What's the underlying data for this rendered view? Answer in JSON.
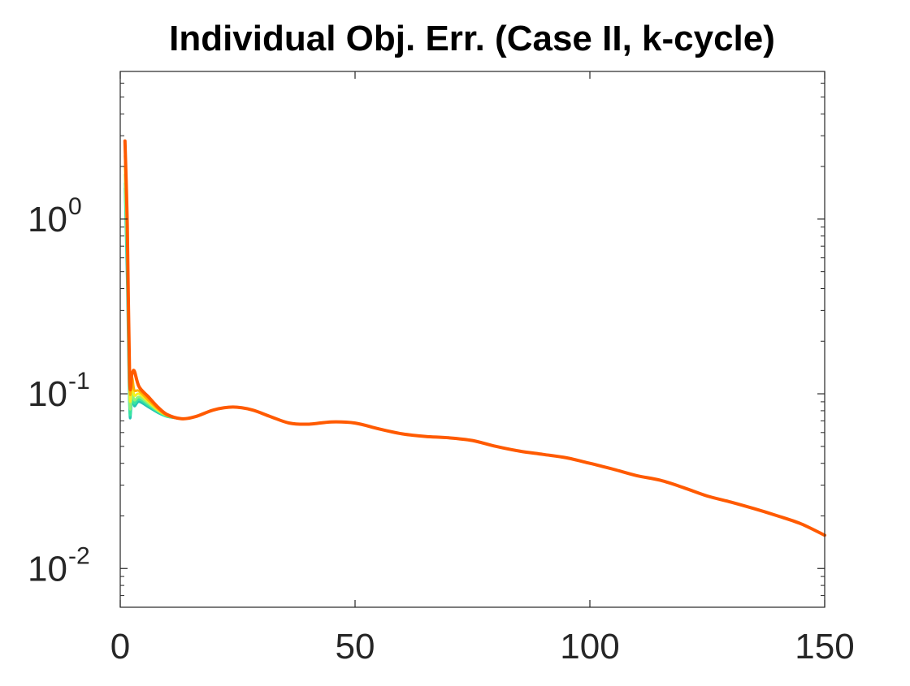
{
  "chart_data": {
    "type": "line",
    "title": "Individual Obj. Err. (Case II, k-cycle)",
    "xlabel": "",
    "ylabel": "",
    "xlim": [
      0,
      150
    ],
    "ylim": [
      0.006,
      7
    ],
    "yscale": "log",
    "grid": false,
    "x_ticks": [
      {
        "value": 0,
        "label": "0"
      },
      {
        "value": 50,
        "label": "50"
      },
      {
        "value": 100,
        "label": "100"
      },
      {
        "value": 150,
        "label": "150"
      }
    ],
    "y_ticks": [
      {
        "value": 0.01,
        "base": "10",
        "exp": "-2"
      },
      {
        "value": 0.1,
        "base": "10",
        "exp": "-1"
      },
      {
        "value": 1,
        "base": "10",
        "exp": "0"
      }
    ],
    "series": [
      {
        "color": "#22c4b4",
        "x": [
          1,
          1.5,
          2,
          2.5,
          3,
          4,
          6,
          8,
          10,
          13
        ],
        "y": [
          1.5,
          0.4,
          0.078,
          0.095,
          0.085,
          0.09,
          0.084,
          0.078,
          0.074,
          0.072
        ]
      },
      {
        "color": "#39e6a0",
        "x": [
          1,
          1.5,
          2,
          2.5,
          3,
          4,
          6,
          8,
          10,
          13
        ],
        "y": [
          1.6,
          0.5,
          0.082,
          0.1,
          0.088,
          0.093,
          0.086,
          0.079,
          0.074,
          0.072
        ]
      },
      {
        "color": "#8ef27a",
        "x": [
          1,
          1.5,
          2,
          2.5,
          3,
          4,
          6,
          8,
          10,
          13
        ],
        "y": [
          1.8,
          0.6,
          0.09,
          0.105,
          0.092,
          0.096,
          0.088,
          0.08,
          0.075,
          0.072
        ]
      },
      {
        "color": "#f4f020",
        "x": [
          1,
          1.5,
          2,
          2.5,
          3,
          4,
          6,
          8,
          10,
          13
        ],
        "y": [
          2.0,
          0.7,
          0.1,
          0.115,
          0.098,
          0.1,
          0.09,
          0.081,
          0.075,
          0.072
        ]
      },
      {
        "color": "#ffb000",
        "x": [
          1,
          1.5,
          2,
          2.5,
          3,
          4,
          6,
          8,
          10,
          13
        ],
        "y": [
          2.3,
          0.8,
          0.11,
          0.125,
          0.105,
          0.104,
          0.092,
          0.082,
          0.075,
          0.072
        ]
      },
      {
        "color": "#ff5a00",
        "x": [
          1,
          1.5,
          2,
          2.5,
          3,
          4,
          6,
          8,
          10,
          13,
          16,
          20,
          24,
          28,
          32,
          36,
          40,
          45,
          50,
          55,
          60,
          65,
          70,
          75,
          80,
          85,
          90,
          95,
          100,
          105,
          110,
          115,
          120,
          125,
          130,
          135,
          140,
          145,
          150
        ],
        "y": [
          2.8,
          0.9,
          0.12,
          0.13,
          0.135,
          0.11,
          0.096,
          0.084,
          0.076,
          0.072,
          0.074,
          0.081,
          0.084,
          0.081,
          0.074,
          0.068,
          0.067,
          0.069,
          0.068,
          0.063,
          0.059,
          0.057,
          0.056,
          0.054,
          0.05,
          0.047,
          0.045,
          0.043,
          0.04,
          0.037,
          0.034,
          0.032,
          0.029,
          0.026,
          0.024,
          0.022,
          0.02,
          0.018,
          0.0155
        ]
      }
    ]
  }
}
